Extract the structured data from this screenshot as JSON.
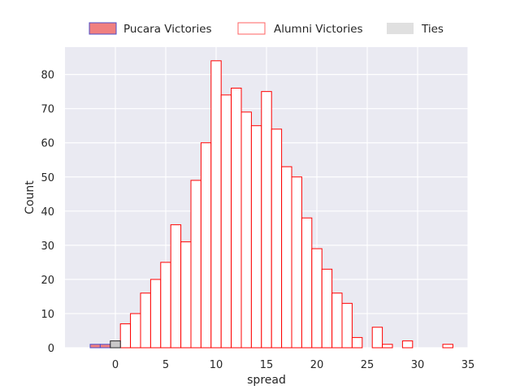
{
  "chart_data": {
    "type": "bar",
    "subtype": "histogram",
    "xlabel": "spread",
    "ylabel": "Count",
    "xlim": [
      -5,
      35
    ],
    "ylim": [
      0,
      88
    ],
    "xticks": [
      0,
      5,
      10,
      15,
      20,
      25,
      30,
      35
    ],
    "yticks": [
      0,
      10,
      20,
      30,
      40,
      50,
      60,
      70,
      80
    ],
    "bin_width": 1,
    "grid": true,
    "legend_position": "top-center",
    "series": [
      {
        "name": "Pucara Victories",
        "fill": "#f08080",
        "stroke": "#4c4cc8",
        "bins": [
          {
            "x0": -2.5,
            "x1": -1.5,
            "value": 1
          },
          {
            "x0": -1.5,
            "x1": -0.5,
            "value": 1
          }
        ]
      },
      {
        "name": "Alumni Victories",
        "fill": "#ffffff",
        "stroke": "#ff0000",
        "bins": [
          {
            "x0": 0.5,
            "x1": 1.5,
            "value": 7
          },
          {
            "x0": 1.5,
            "x1": 2.5,
            "value": 10
          },
          {
            "x0": 2.5,
            "x1": 3.5,
            "value": 16
          },
          {
            "x0": 3.5,
            "x1": 4.5,
            "value": 20
          },
          {
            "x0": 4.5,
            "x1": 5.5,
            "value": 25
          },
          {
            "x0": 5.5,
            "x1": 6.5,
            "value": 36
          },
          {
            "x0": 6.5,
            "x1": 7.5,
            "value": 31
          },
          {
            "x0": 7.5,
            "x1": 8.5,
            "value": 49
          },
          {
            "x0": 8.5,
            "x1": 9.5,
            "value": 60
          },
          {
            "x0": 9.5,
            "x1": 10.5,
            "value": 84
          },
          {
            "x0": 10.5,
            "x1": 11.5,
            "value": 74
          },
          {
            "x0": 11.5,
            "x1": 12.5,
            "value": 76
          },
          {
            "x0": 12.5,
            "x1": 13.5,
            "value": 69
          },
          {
            "x0": 13.5,
            "x1": 14.5,
            "value": 65
          },
          {
            "x0": 14.5,
            "x1": 15.5,
            "value": 75
          },
          {
            "x0": 15.5,
            "x1": 16.5,
            "value": 64
          },
          {
            "x0": 16.5,
            "x1": 17.5,
            "value": 53
          },
          {
            "x0": 17.5,
            "x1": 18.5,
            "value": 50
          },
          {
            "x0": 18.5,
            "x1": 19.5,
            "value": 38
          },
          {
            "x0": 19.5,
            "x1": 20.5,
            "value": 29
          },
          {
            "x0": 20.5,
            "x1": 21.5,
            "value": 23
          },
          {
            "x0": 21.5,
            "x1": 22.5,
            "value": 16
          },
          {
            "x0": 22.5,
            "x1": 23.5,
            "value": 13
          },
          {
            "x0": 23.5,
            "x1": 24.5,
            "value": 3
          },
          {
            "x0": 25.5,
            "x1": 26.5,
            "value": 6
          },
          {
            "x0": 26.5,
            "x1": 27.5,
            "value": 1
          },
          {
            "x0": 28.5,
            "x1": 29.5,
            "value": 2
          },
          {
            "x0": 32.5,
            "x1": 33.5,
            "value": 1
          }
        ]
      },
      {
        "name": "Ties",
        "fill": "#c8c8c8",
        "stroke": "#262626",
        "bins": [
          {
            "x0": -0.5,
            "x1": 0.5,
            "value": 2
          }
        ]
      }
    ]
  },
  "colors": {
    "plot_background": "#eaeaf2",
    "grid": "#ffffff",
    "text": "#262626",
    "ties_legend_fill": "#e0e0e0"
  }
}
